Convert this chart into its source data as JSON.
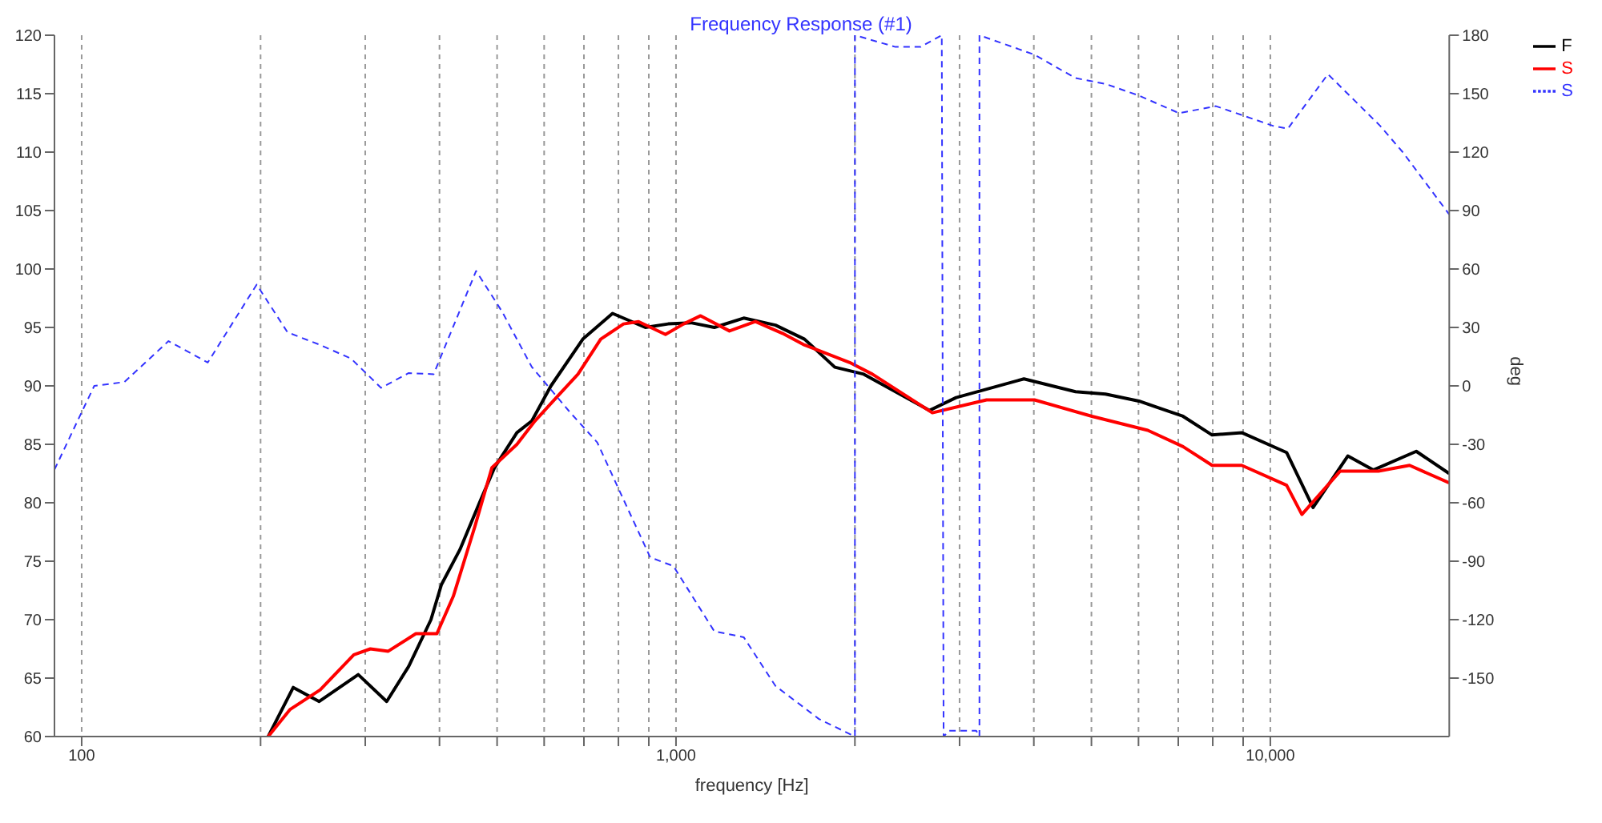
{
  "chart_data": {
    "type": "line",
    "title": "Frequency Response (#1)",
    "xlabel": "frequency [Hz]",
    "y2label": "deg",
    "log": "x",
    "grid": true,
    "legend": "top right",
    "marker": "none",
    "xlim": [
      90,
      20000
    ],
    "xticks": [
      {
        "value": 100,
        "label": "100"
      },
      {
        "value": 200,
        "label": null
      },
      {
        "value": 300,
        "label": null
      },
      {
        "value": 400,
        "label": null
      },
      {
        "value": 500,
        "label": null
      },
      {
        "value": 600,
        "label": null
      },
      {
        "value": 700,
        "label": null
      },
      {
        "value": 800,
        "label": null
      },
      {
        "value": 900,
        "label": null
      },
      {
        "value": 1000,
        "label": "1,000"
      },
      {
        "value": 2000,
        "label": null
      },
      {
        "value": 3000,
        "label": null
      },
      {
        "value": 4000,
        "label": null
      },
      {
        "value": 5000,
        "label": null
      },
      {
        "value": 6000,
        "label": null
      },
      {
        "value": 7000,
        "label": null
      },
      {
        "value": 8000,
        "label": null
      },
      {
        "value": 9000,
        "label": null
      },
      {
        "value": 10000,
        "label": "10,000"
      }
    ],
    "ylim": [
      60,
      120
    ],
    "yticks": [
      60,
      65,
      70,
      75,
      80,
      85,
      90,
      95,
      100,
      105,
      110,
      115,
      120
    ],
    "y2lim": [
      -180,
      180
    ],
    "y2ticks": [
      -150,
      -120,
      -90,
      -60,
      -30,
      0,
      30,
      60,
      90,
      120,
      150,
      180
    ],
    "series": [
      {
        "name": "F",
        "color": "#000000",
        "line_style": "solid",
        "x": [
          206,
          227,
          251,
          292,
          326,
          355,
          387,
          403,
          433,
          467,
          495,
          540,
          572,
          616,
          697,
          782,
          888,
          970,
          1060,
          1160,
          1300,
          1470,
          1645,
          1850,
          2070,
          2670,
          2960,
          3850,
          4700,
          5280,
          6010,
          7130,
          7980,
          8950,
          10650,
          11800,
          13500,
          14900,
          17600,
          20000
        ],
        "values": [
          60,
          64.2,
          63,
          65.3,
          63,
          66,
          70,
          73,
          76,
          80,
          83,
          86,
          87,
          90,
          94,
          96.2,
          95,
          95.3,
          95.4,
          95,
          95.8,
          95.2,
          94,
          91.6,
          91,
          87.9,
          89,
          90.6,
          89.5,
          89.3,
          88.7,
          87.4,
          85.8,
          86,
          84.3,
          79.6,
          84,
          82.8,
          84.4,
          82.5
        ]
      },
      {
        "name": "S",
        "color": "#ff0000",
        "line_style": "solid",
        "x": [
          206,
          224,
          252,
          287,
          306,
          328,
          365,
          396,
          422,
          459,
          490,
          540,
          579,
          629,
          684,
          747,
          816,
          865,
          960,
          1030,
          1100,
          1230,
          1360,
          1510,
          1645,
          1960,
          2140,
          2700,
          3330,
          4010,
          5010,
          6220,
          7130,
          7980,
          8950,
          10650,
          11300,
          13100,
          15200,
          17150,
          20000
        ],
        "values": [
          60,
          62.3,
          64,
          67,
          67.5,
          67.3,
          68.8,
          68.8,
          72,
          78,
          83,
          85,
          87,
          89,
          91,
          94,
          95.3,
          95.5,
          94.4,
          95.3,
          96,
          94.7,
          95.5,
          94.5,
          93.5,
          92,
          91,
          87.7,
          88.8,
          88.8,
          87.4,
          86.2,
          84.8,
          83.2,
          83.2,
          81.5,
          79,
          82.7,
          82.7,
          83.2,
          81.7
        ]
      },
      {
        "name": "S",
        "color": "#3333ff",
        "line_style": "dashed",
        "axis": "y2",
        "x": [
          90,
          100,
          105,
          118,
          140,
          163,
          197,
          222,
          252,
          284,
          319,
          355,
          391,
          461,
          510,
          572,
          663,
          737,
          815,
          905,
          990,
          1160,
          1300,
          1470,
          1740,
          2000,
          2000,
          2340,
          2580,
          2800,
          2820,
          2880,
          3200,
          3240,
          3240,
          4010,
          4700,
          5280,
          6010,
          7020,
          8100,
          10100,
          10700,
          12500,
          15300,
          16700,
          20000
        ],
        "values": [
          -43,
          -13.5,
          0,
          2,
          23,
          12,
          52,
          27.5,
          21,
          14,
          -1,
          6.6,
          6,
          59,
          38,
          9.7,
          -13.5,
          -29,
          -58,
          -88,
          -92.5,
          -126,
          -129,
          -154,
          -171,
          -180,
          180,
          174,
          174,
          180,
          -180,
          -177,
          -177,
          -180,
          180,
          170,
          158,
          155,
          149,
          140,
          143.6,
          133.5,
          132,
          160,
          133.5,
          120,
          88
        ]
      }
    ]
  }
}
